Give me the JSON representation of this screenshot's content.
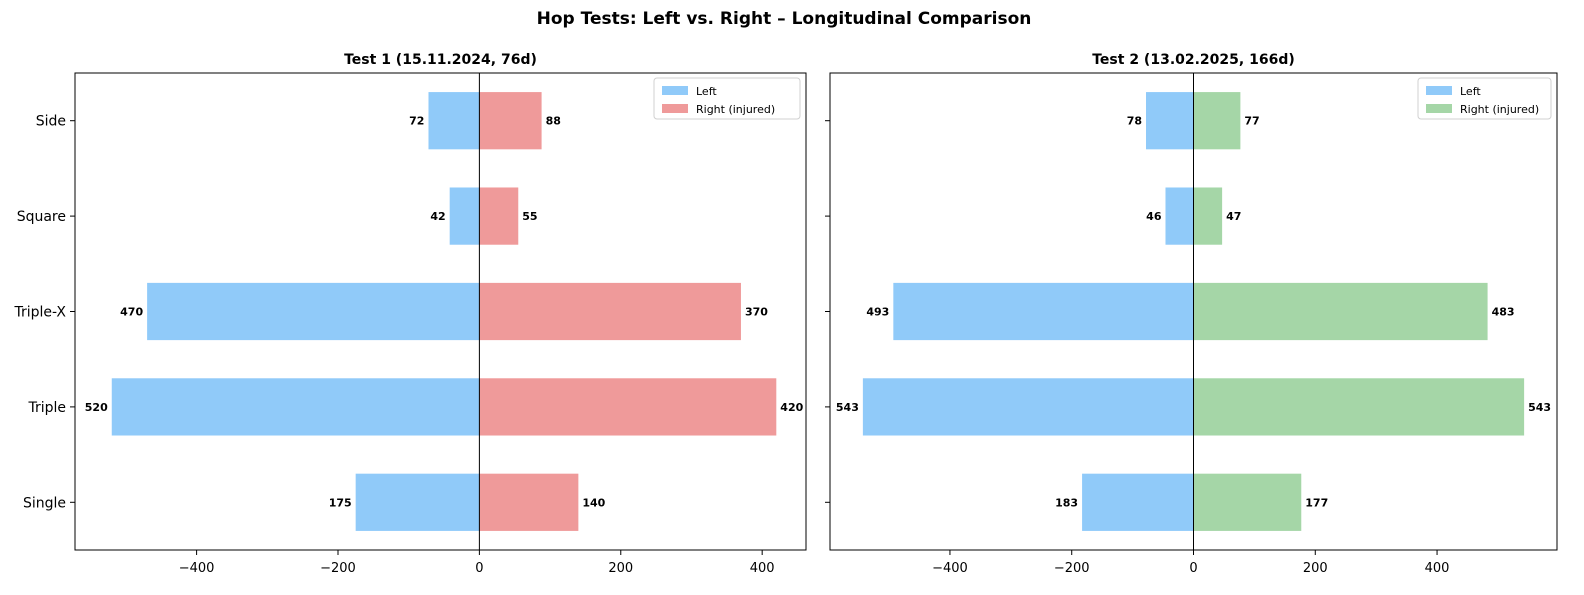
{
  "figure_title": "Hop Tests: Left vs. Right – Longitudinal Comparison",
  "colors": {
    "left": "#90CAF9",
    "right_test1": "#EF9A9A",
    "right_test2": "#A5D6A7",
    "axis": "#000000"
  },
  "chart_data": [
    {
      "type": "bar",
      "orientation": "horizontal",
      "title": "Test 1 (15.11.2024, 76d)",
      "categories": [
        "Single",
        "Triple",
        "Triple-X",
        "Square",
        "Side"
      ],
      "series": [
        {
          "name": "Left",
          "values": [
            -175,
            -520,
            -470,
            -42,
            -72
          ]
        },
        {
          "name": "Right (injured)",
          "values": [
            140,
            420,
            370,
            55,
            88
          ]
        }
      ],
      "data_labels": {
        "Left": [
          "175",
          "520",
          "470",
          "42",
          "72"
        ],
        "Right (injured)": [
          "140",
          "420",
          "370",
          "55",
          "88"
        ]
      },
      "xlim": [
        -572,
        462
      ],
      "xticks": [
        -400,
        -200,
        0,
        200,
        400
      ],
      "xtick_labels": [
        "−400",
        "−200",
        "0",
        "200",
        "400"
      ],
      "legend": "top-right",
      "grid": false
    },
    {
      "type": "bar",
      "orientation": "horizontal",
      "title": "Test 2 (13.02.2025, 166d)",
      "categories": [
        "Single",
        "Triple",
        "Triple-X",
        "Square",
        "Side"
      ],
      "series": [
        {
          "name": "Left",
          "values": [
            -183,
            -543,
            -493,
            -46,
            -78
          ]
        },
        {
          "name": "Right (injured)",
          "values": [
            177,
            543,
            483,
            47,
            77
          ]
        }
      ],
      "data_labels": {
        "Left": [
          "183",
          "543",
          "493",
          "46",
          "78"
        ],
        "Right (injured)": [
          "177",
          "543",
          "483",
          "47",
          "77"
        ]
      },
      "xlim": [
        -597,
        597
      ],
      "xticks": [
        -400,
        -200,
        0,
        200,
        400
      ],
      "xtick_labels": [
        "−400",
        "−200",
        "0",
        "200",
        "400"
      ],
      "legend": "top-right",
      "grid": false
    }
  ]
}
